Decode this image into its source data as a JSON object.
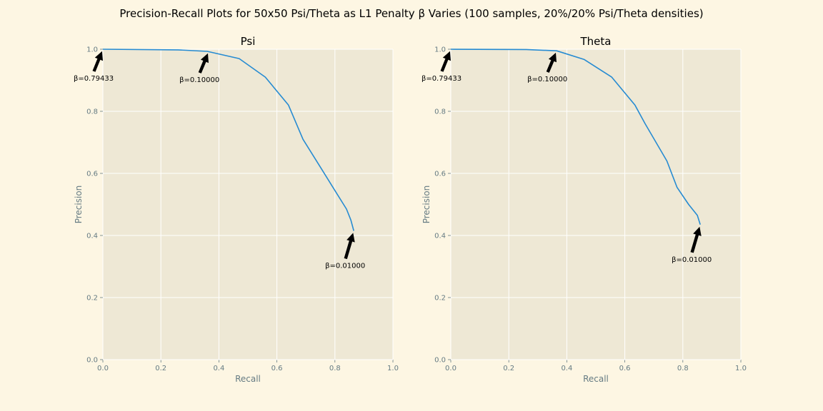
{
  "figure": {
    "suptitle": "Precision-Recall Plots for 50x50 Psi/Theta as L1 Penalty β Varies (100 samples, 20%/20% Psi/Theta densities)",
    "background_color": "#fdf6e3",
    "axes_background_color": "#eee8d5",
    "grid_color": "#ffffff",
    "line_color": "#268bd2"
  },
  "chart_data": [
    {
      "type": "line",
      "title": "Psi",
      "xlabel": "Recall",
      "ylabel": "Precision",
      "xlim": [
        0,
        1
      ],
      "ylim": [
        0,
        1
      ],
      "xticks": [
        "0.0",
        "0.2",
        "0.4",
        "0.6",
        "0.8",
        "1.0"
      ],
      "yticks": [
        "0.0",
        "0.2",
        "0.4",
        "0.6",
        "0.8",
        "1.0"
      ],
      "grid": true,
      "legend": "none",
      "series": [
        {
          "x": [
            0.0,
            0.26,
            0.36,
            0.47,
            0.56,
            0.64,
            0.69,
            0.75,
            0.79,
            0.84,
            0.855,
            0.865
          ],
          "y": [
            1.0,
            0.998,
            0.993,
            0.97,
            0.91,
            0.82,
            0.71,
            0.62,
            0.56,
            0.485,
            0.45,
            0.415
          ]
        }
      ],
      "annotations": [
        {
          "text": "β=0.79433",
          "x": 0.0,
          "y": 1.0
        },
        {
          "text": "β=0.10000",
          "x": 0.365,
          "y": 0.993
        },
        {
          "text": "β=0.01000",
          "x": 0.865,
          "y": 0.415
        }
      ]
    },
    {
      "type": "line",
      "title": "Theta",
      "xlabel": "Recall",
      "ylabel": "Precision",
      "xlim": [
        0,
        1
      ],
      "ylim": [
        0,
        1
      ],
      "xticks": [
        "0.0",
        "0.2",
        "0.4",
        "0.6",
        "0.8",
        "1.0"
      ],
      "yticks": [
        "0.0",
        "0.2",
        "0.4",
        "0.6",
        "0.8",
        "1.0"
      ],
      "grid": true,
      "legend": "none",
      "series": [
        {
          "x": [
            0.0,
            0.26,
            0.365,
            0.46,
            0.555,
            0.635,
            0.67,
            0.745,
            0.78,
            0.82,
            0.85,
            0.86
          ],
          "y": [
            1.0,
            0.999,
            0.995,
            0.967,
            0.91,
            0.82,
            0.76,
            0.64,
            0.555,
            0.5,
            0.465,
            0.435
          ]
        }
      ],
      "annotations": [
        {
          "text": "β=0.79433",
          "x": 0.0,
          "y": 1.0
        },
        {
          "text": "β=0.10000",
          "x": 0.365,
          "y": 0.995
        },
        {
          "text": "β=0.01000",
          "x": 0.86,
          "y": 0.435
        }
      ]
    }
  ]
}
